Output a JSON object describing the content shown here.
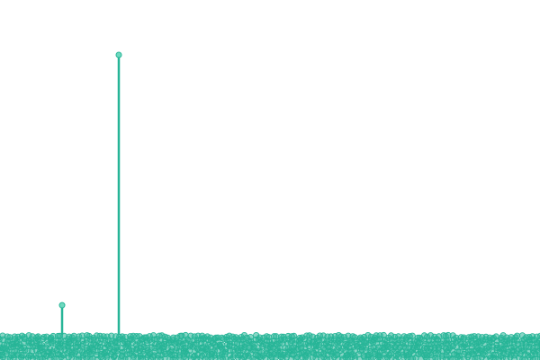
{
  "chart_data": {
    "type": "scatter",
    "title": "",
    "xlabel": "",
    "ylabel": "",
    "color": "#26b597",
    "marker": "circle",
    "baseline_band": true,
    "grid": false,
    "legend": "none",
    "x_domain": [
      0,
      100
    ],
    "y_domain": [
      0,
      100
    ],
    "stems": [
      {
        "x": 11.5,
        "y": 10
      },
      {
        "x": 22,
        "y": 100
      }
    ]
  }
}
